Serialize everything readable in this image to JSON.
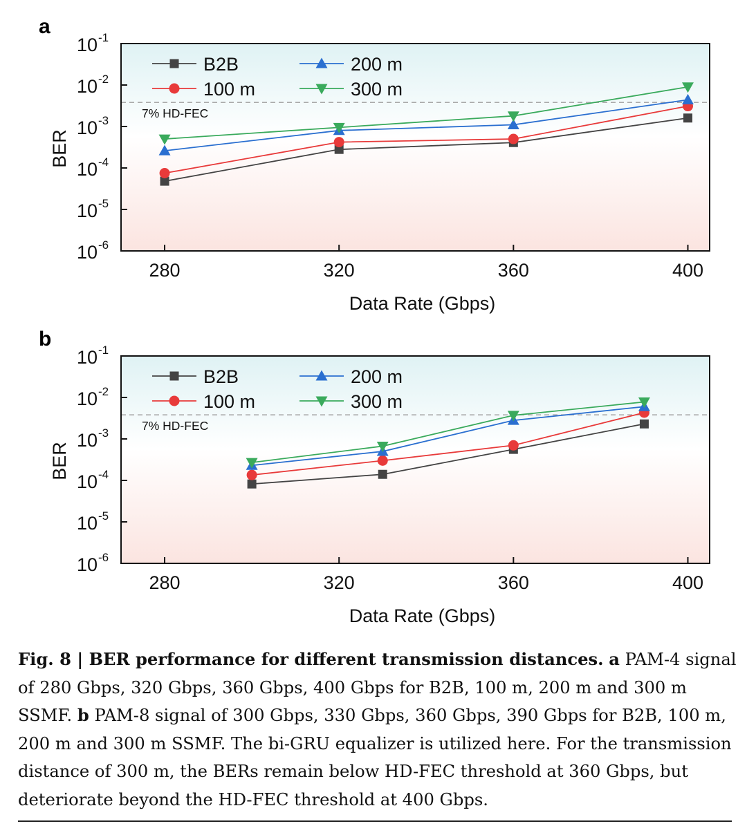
{
  "chart_data": [
    {
      "panel": "a",
      "type": "line",
      "yscale": "log",
      "title": "",
      "xlabel": "Data Rate (Gbps)",
      "ylabel": "BER",
      "xlim": [
        270,
        405
      ],
      "ylim": [
        1e-06,
        0.1
      ],
      "xticks": [
        280,
        320,
        360,
        400
      ],
      "xtick_labels": [
        "280",
        "320",
        "360",
        "400"
      ],
      "ytick_exponents": [
        "-1",
        "-2",
        "-3",
        "-4",
        "-5",
        "-6"
      ],
      "threshold": {
        "label": "7%  HD-FEC",
        "value": 0.0038
      },
      "series": [
        {
          "name": "B2B",
          "color": "#444444",
          "marker": "square",
          "x": [
            280,
            320,
            360,
            400
          ],
          "values": [
            4.8e-05,
            0.00028,
            0.00041,
            0.0016
          ]
        },
        {
          "name": "100 m",
          "color": "#e83a3a",
          "marker": "circle",
          "x": [
            280,
            320,
            360,
            400
          ],
          "values": [
            7.5e-05,
            0.00042,
            0.0005,
            0.0031
          ]
        },
        {
          "name": "200 m",
          "color": "#2a6fd0",
          "marker": "triangle-up",
          "x": [
            280,
            320,
            360,
            400
          ],
          "values": [
            0.00026,
            0.0008,
            0.0011,
            0.0044
          ]
        },
        {
          "name": "300 m",
          "color": "#3aaa5c",
          "marker": "triangle-down",
          "x": [
            280,
            320,
            360,
            400
          ],
          "values": [
            0.0005,
            0.00095,
            0.0018,
            0.009
          ]
        }
      ]
    },
    {
      "panel": "b",
      "type": "line",
      "yscale": "log",
      "title": "",
      "xlabel": "Data Rate (Gbps)",
      "ylabel": "BER",
      "xlim": [
        270,
        405
      ],
      "ylim": [
        1e-06,
        0.1
      ],
      "xticks": [
        280,
        320,
        360,
        400
      ],
      "xtick_labels": [
        "280",
        "320",
        "360",
        "400"
      ],
      "ytick_exponents": [
        "-1",
        "-2",
        "-3",
        "-4",
        "-5",
        "-6"
      ],
      "threshold": {
        "label": "7%  HD-FEC",
        "value": 0.0038
      },
      "series": [
        {
          "name": "B2B",
          "color": "#444444",
          "marker": "square",
          "x": [
            300,
            330,
            360,
            390
          ],
          "values": [
            8.2e-05,
            0.00014,
            0.00056,
            0.0023
          ]
        },
        {
          "name": "100 m",
          "color": "#e83a3a",
          "marker": "circle",
          "x": [
            300,
            330,
            360,
            390
          ],
          "values": [
            0.000135,
            0.0003,
            0.0007,
            0.0043
          ]
        },
        {
          "name": "200 m",
          "color": "#2a6fd0",
          "marker": "triangle-up",
          "x": [
            300,
            330,
            360,
            390
          ],
          "values": [
            0.00023,
            0.0005,
            0.0028,
            0.006
          ]
        },
        {
          "name": "300 m",
          "color": "#3aaa5c",
          "marker": "triangle-down",
          "x": [
            300,
            330,
            360,
            390
          ],
          "values": [
            0.00027,
            0.00067,
            0.0037,
            0.0078
          ]
        }
      ]
    }
  ],
  "caption": {
    "fig_label": "Fig. 8 | BER performance for different transmission distances.",
    "part_a_label": "a",
    "part_a_text": "PAM-4 signal of 280 Gbps, 320 Gbps, 360 Gbps, 400 Gbps for B2B, 100 m, 200 m and 300 m SSMF.",
    "part_b_label": "b",
    "part_b_text": "PAM-8 signal of 300 Gbps, 330 Gbps, 360 Gbps, 390 Gbps for B2B, 100 m, 200 m and 300 m SSMF. The bi-GRU equalizer is utilized here. For the transmission distance of 300 m, the BERs remain below HD-FEC threshold at 360 Gbps, but deteriorate beyond the HD-FEC threshold at 400 Gbps."
  },
  "colors": {
    "plot_top": "#dff2f4",
    "plot_bottom": "#fbe4e0",
    "threshold": "#aaaaaa"
  }
}
